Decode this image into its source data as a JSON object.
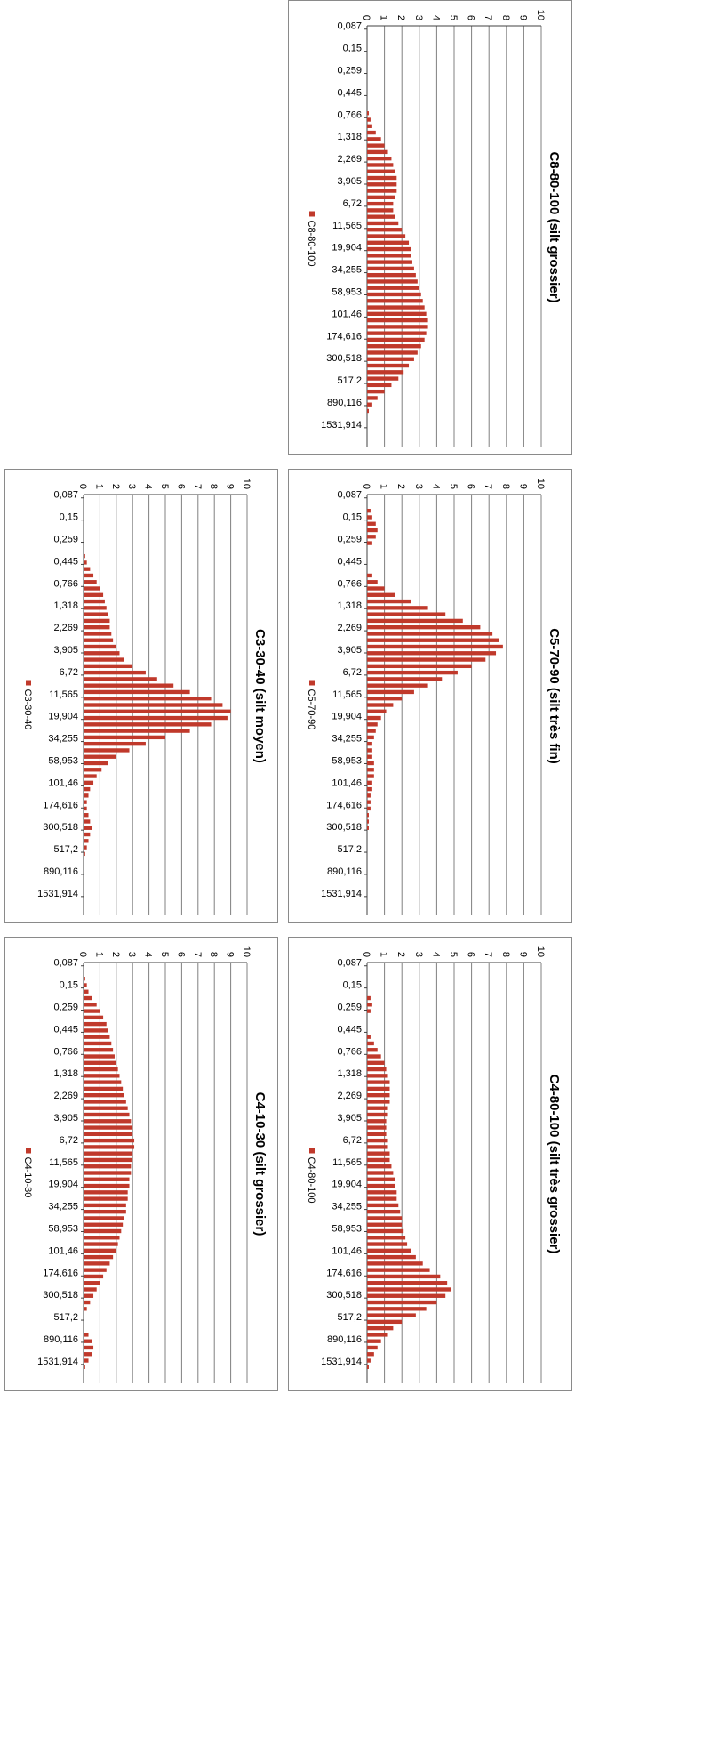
{
  "tick_labels": [
    "0,087",
    "0,15",
    "0,259",
    "0,445",
    "0,766",
    "1,318",
    "2,269",
    "3,905",
    "6,72",
    "11,565",
    "19,904",
    "34,255",
    "58,953",
    "101,46",
    "174,616",
    "300,518",
    "517,2",
    "890,116",
    "1531,914"
  ],
  "y_ticks": [
    "0",
    "1",
    "2",
    "3",
    "4",
    "5",
    "6",
    "7",
    "8",
    "9",
    "10"
  ],
  "colors": {
    "bar": "#c0392b",
    "grid": "#808080",
    "axis": "#404040",
    "frame": "#8a8a8a"
  },
  "chart_data": [
    {
      "id": "c4-10-30",
      "type": "bar",
      "title": "C4-10-30 (silt grossier)",
      "series": [
        {
          "name": "C4-10-30",
          "values": [
            0,
            0.05,
            0.1,
            0.2,
            0.3,
            0.5,
            0.8,
            1.0,
            1.2,
            1.4,
            1.5,
            1.6,
            1.7,
            1.8,
            1.9,
            2.0,
            2.1,
            2.2,
            2.3,
            2.4,
            2.5,
            2.6,
            2.7,
            2.8,
            2.9,
            3.0,
            3.0,
            3.1,
            3.1,
            3.0,
            3.0,
            2.9,
            2.9,
            2.8,
            2.8,
            2.7,
            2.7,
            2.6,
            2.6,
            2.5,
            2.4,
            2.3,
            2.2,
            2.1,
            2.0,
            1.8,
            1.6,
            1.4,
            1.2,
            1.0,
            0.8,
            0.6,
            0.4,
            0.2,
            0,
            0,
            0,
            0.3,
            0.5,
            0.6,
            0.5,
            0.3,
            0.1,
            0,
            0
          ]
        }
      ],
      "ylim": [
        0,
        10
      ],
      "xlabel": "",
      "ylabel": "",
      "grid": true,
      "legend": "right"
    },
    {
      "id": "c3-30-40",
      "type": "bar",
      "title": "C3-30-40 (silt moyen)",
      "series": [
        {
          "name": "C3-30-40",
          "values": [
            0,
            0,
            0,
            0,
            0,
            0,
            0,
            0,
            0,
            0.1,
            0.2,
            0.4,
            0.6,
            0.8,
            1.0,
            1.2,
            1.3,
            1.4,
            1.5,
            1.6,
            1.6,
            1.7,
            1.8,
            2.0,
            2.2,
            2.5,
            3.0,
            3.8,
            4.5,
            5.5,
            6.5,
            7.8,
            8.5,
            9.0,
            8.8,
            7.8,
            6.5,
            5.0,
            3.8,
            2.8,
            2.0,
            1.5,
            1.1,
            0.8,
            0.6,
            0.4,
            0.3,
            0.2,
            0.2,
            0.3,
            0.4,
            0.5,
            0.4,
            0.3,
            0.2,
            0.1,
            0,
            0,
            0,
            0,
            0,
            0,
            0,
            0,
            0
          ]
        }
      ],
      "ylim": [
        0,
        10
      ],
      "xlabel": "",
      "ylabel": "",
      "grid": true,
      "legend": "right"
    },
    {
      "id": "c4-80-100",
      "type": "bar",
      "title": "C4-80-100 (silt très grossier)",
      "series": [
        {
          "name": "C4-80-100",
          "values": [
            0,
            0,
            0,
            0,
            0,
            0.2,
            0.3,
            0.2,
            0,
            0,
            0,
            0.2,
            0.4,
            0.6,
            0.8,
            1.0,
            1.1,
            1.2,
            1.3,
            1.3,
            1.3,
            1.3,
            1.2,
            1.2,
            1.1,
            1.1,
            1.1,
            1.2,
            1.2,
            1.3,
            1.3,
            1.4,
            1.5,
            1.6,
            1.6,
            1.7,
            1.7,
            1.8,
            1.9,
            2.0,
            2.0,
            2.1,
            2.2,
            2.3,
            2.5,
            2.8,
            3.2,
            3.6,
            4.2,
            4.6,
            4.8,
            4.5,
            4.0,
            3.4,
            2.8,
            2.0,
            1.5,
            1.2,
            0.8,
            0.6,
            0.4,
            0.2,
            0.1,
            0,
            0
          ]
        }
      ],
      "ylim": [
        0,
        10
      ],
      "xlabel": "",
      "ylabel": "",
      "grid": true,
      "legend": "right"
    },
    {
      "id": "c5-70-90",
      "type": "bar",
      "title": "C5-70-90 (silt très fin)",
      "series": [
        {
          "name": "C5-70-90",
          "values": [
            0,
            0,
            0.2,
            0.3,
            0.5,
            0.6,
            0.5,
            0.3,
            0,
            0,
            0,
            0,
            0.3,
            0.6,
            1.0,
            1.6,
            2.5,
            3.5,
            4.5,
            5.5,
            6.5,
            7.2,
            7.6,
            7.8,
            7.4,
            6.8,
            6.0,
            5.2,
            4.3,
            3.5,
            2.7,
            2.0,
            1.5,
            1.1,
            0.8,
            0.6,
            0.5,
            0.4,
            0.3,
            0.3,
            0.3,
            0.4,
            0.4,
            0.4,
            0.3,
            0.3,
            0.2,
            0.2,
            0.2,
            0.1,
            0.1,
            0.1,
            0,
            0,
            0,
            0,
            0,
            0,
            0,
            0,
            0,
            0,
            0,
            0,
            0
          ]
        }
      ],
      "ylim": [
        0,
        10
      ],
      "xlabel": "",
      "ylabel": "",
      "grid": true,
      "legend": "right"
    },
    {
      "id": "c8-80-100",
      "type": "bar",
      "title": "C8-80-100 (silt grossier)",
      "series": [
        {
          "name": "C8-80-100",
          "values": [
            0,
            0,
            0,
            0,
            0,
            0,
            0,
            0,
            0,
            0,
            0,
            0,
            0,
            0.1,
            0.2,
            0.3,
            0.5,
            0.8,
            1.0,
            1.2,
            1.4,
            1.5,
            1.6,
            1.7,
            1.7,
            1.7,
            1.6,
            1.5,
            1.5,
            1.6,
            1.8,
            2.0,
            2.2,
            2.4,
            2.5,
            2.5,
            2.6,
            2.7,
            2.8,
            2.9,
            3.0,
            3.1,
            3.2,
            3.3,
            3.4,
            3.5,
            3.5,
            3.4,
            3.3,
            3.1,
            2.9,
            2.7,
            2.4,
            2.1,
            1.8,
            1.4,
            1.0,
            0.6,
            0.3,
            0.1,
            0,
            0,
            0,
            0,
            0
          ]
        }
      ],
      "ylim": [
        0,
        10
      ],
      "xlabel": "",
      "ylabel": "",
      "grid": true,
      "legend": "right"
    }
  ]
}
